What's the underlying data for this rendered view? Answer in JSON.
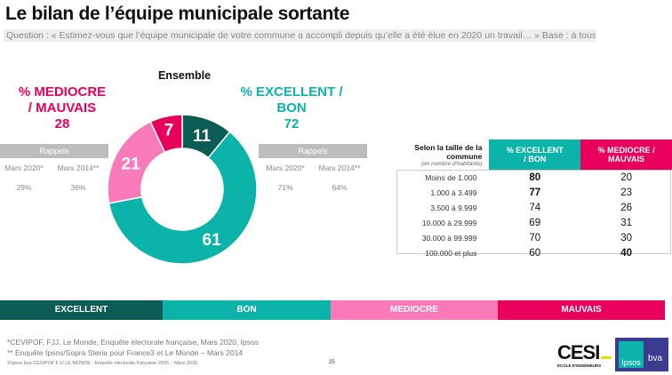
{
  "title": "Le bilan de l’équipe municipale sortante",
  "question": "Question : « Estimez-vous que l’équipe municipale de votre commune a accompli depuis qu’elle a été élue en 2020 un travail… » Base : à tous",
  "ensemble": "Ensemble",
  "negative": {
    "label1": "% MEDIOCRE",
    "label2": "/ MAUVAIS",
    "value": "28",
    "rappels": "Rappels",
    "m2020": "Mars 2020*",
    "m2014": "Mars 2014**",
    "v2020": "29%",
    "v2014": "36%"
  },
  "positive": {
    "label1": "% EXCELLENT /",
    "label2": "BON",
    "value": "72",
    "rappels": "Rappels",
    "m2020": "Mars 2020*",
    "m2014": "Mars 2014**",
    "v2020": "71%",
    "v2014": "64%"
  },
  "chart_data": {
    "type": "pie",
    "subtype": "donut",
    "title": "Ensemble",
    "slices": [
      {
        "name": "EXCELLENT",
        "value": 11,
        "color": "#0a5c55"
      },
      {
        "name": "BON",
        "value": 61,
        "color": "#0bb3a8"
      },
      {
        "name": "MEDIOCRE",
        "value": 21,
        "color": "#f97ab8"
      },
      {
        "name": "MAUVAIS",
        "value": 7,
        "color": "#e8005a"
      }
    ]
  },
  "table": {
    "head1": "Selon la taille de la commune",
    "head1_sub": "(en nombre d'habitants)",
    "col1": "% EXCELLENT / BON",
    "col2": "% MEDIOCRE / MAUVAIS",
    "rows": [
      {
        "label": "Moins de 1.000",
        "pos": "80",
        "neg": "20",
        "bold": "pos"
      },
      {
        "label": "1.000 à 3.499",
        "pos": "77",
        "neg": "23",
        "bold": "pos"
      },
      {
        "label": "3.500 à 9.999",
        "pos": "74",
        "neg": "26"
      },
      {
        "label": "10.000 à 29.999",
        "pos": "69",
        "neg": "31"
      },
      {
        "label": "30.000 à 99.999",
        "pos": "70",
        "neg": "30"
      },
      {
        "label": "100.000 et plus",
        "pos": "60",
        "neg": "40",
        "bold": "neg"
      }
    ]
  },
  "legend": [
    "EXCELLENT",
    "BON",
    "MEDIOCRE",
    "MAUVAIS"
  ],
  "footnotes": [
    "*CEVIPOF, FJJ, Le Monde, Enquête électorale française, Mars 2020, Ipsos",
    "** Enquête Ipsos/Sopra Steria pour France3 et Le Monde – Mars 2014"
  ],
  "copyright": "©Ipsos bva  CEVIPOF FJJ LE MONDE : Enquête électorale française 2026 – Mars 2026",
  "page": "25",
  "logos": {
    "cesi": "CESI",
    "cesi_sub": "ÉCOLE D'INGÉNIEURS",
    "ipsos": "Ipsos",
    "bva": "bva"
  }
}
